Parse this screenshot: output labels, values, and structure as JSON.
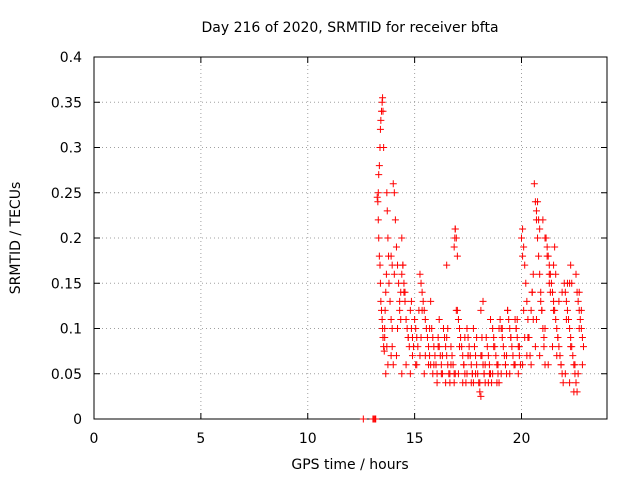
{
  "chart_data": {
    "type": "scatter",
    "title": "Day 216 of 2020, SRMTID for receiver bfta",
    "xlabel": "GPS time / hours",
    "ylabel": "SRMTID / TECUs",
    "xlim": [
      0,
      24
    ],
    "ylim": [
      0,
      0.4
    ],
    "xticks": [
      0,
      5,
      10,
      15,
      20
    ],
    "yticks": [
      0,
      0.05,
      0.1,
      0.15,
      0.2,
      0.25,
      0.3,
      0.35,
      0.4
    ],
    "xtick_labels": [
      "0",
      "5",
      "10",
      "15",
      "20"
    ],
    "ytick_labels": [
      "0",
      "0.05",
      "0.1",
      "0.15",
      "0.2",
      "0.25",
      "0.3",
      "0.35",
      "0.4"
    ],
    "grid": true,
    "marker": "plus",
    "color": "#ff0000",
    "series": [
      {
        "x": [
          12.6,
          13.05,
          13.1,
          13.15,
          13.18,
          13.25,
          13.28,
          13.3,
          13.32,
          13.35,
          13.38,
          13.4,
          13.42,
          13.45,
          13.48,
          13.5,
          13.52,
          13.55,
          13.3,
          13.32,
          13.35,
          13.38,
          13.4,
          13.42,
          13.45,
          13.48,
          13.5,
          13.52,
          13.55,
          13.58,
          13.6,
          13.62,
          13.65,
          13.68,
          13.7,
          13.72,
          13.75,
          13.78,
          13.8,
          13.85,
          13.9,
          13.95,
          14.0,
          14.05,
          14.1,
          14.15,
          14.2,
          14.25,
          14.3,
          14.35,
          14.4,
          14.45,
          14.5,
          14.55,
          14.6,
          14.65,
          14.7,
          14.75,
          14.8,
          14.85,
          14.9,
          14.95,
          15.0,
          15.05,
          15.1,
          15.15,
          15.2,
          15.25,
          15.3,
          15.35,
          15.4,
          15.45,
          15.5,
          15.55,
          15.6,
          15.65,
          15.7,
          15.75,
          15.8,
          15.85,
          15.9,
          15.95,
          16.0,
          16.05,
          16.1,
          16.15,
          16.2,
          16.25,
          16.3,
          16.35,
          16.4,
          16.45,
          16.5,
          16.55,
          16.6,
          16.65,
          16.7,
          16.75,
          16.8,
          16.85,
          16.9,
          16.95,
          17.0,
          17.05,
          17.1,
          17.15,
          17.2,
          17.25,
          17.3,
          17.35,
          17.4,
          17.45,
          17.5,
          17.55,
          17.6,
          17.65,
          17.7,
          17.75,
          17.8,
          17.85,
          17.9,
          17.95,
          18.0,
          18.05,
          18.1,
          18.15,
          18.2,
          18.25,
          18.3,
          18.35,
          18.4,
          18.45,
          18.5,
          18.55,
          18.6,
          18.65,
          18.7,
          18.75,
          18.8,
          18.85,
          18.9,
          18.95,
          19.0,
          19.05,
          19.1,
          19.15,
          19.2,
          19.25,
          19.3,
          19.35,
          19.4,
          19.45,
          19.5,
          19.55,
          19.6,
          19.65,
          19.7,
          19.75,
          19.8,
          19.85,
          19.9,
          19.95,
          20.0,
          20.05,
          20.1,
          20.15,
          20.2,
          20.25,
          20.3,
          20.35,
          20.4,
          20.45,
          20.5,
          20.55,
          20.6,
          20.65,
          20.7,
          20.75,
          20.8,
          20.85,
          20.9,
          20.95,
          21.0,
          21.05,
          21.1,
          21.15,
          21.2,
          21.25,
          21.3,
          21.35,
          21.4,
          21.45,
          21.5,
          21.55,
          21.6,
          21.65,
          21.7,
          21.75,
          21.8,
          21.85,
          21.9,
          21.95,
          22.0,
          22.05,
          22.1,
          22.15,
          22.2,
          22.25,
          22.3,
          22.35,
          22.4,
          22.45,
          22.5,
          22.55,
          22.6,
          22.65,
          22.7,
          22.75,
          22.8,
          22.85,
          22.9,
          13.6,
          13.7,
          13.9,
          14.0,
          14.2,
          14.3,
          14.5,
          14.7,
          14.9,
          15.1,
          15.3,
          15.5,
          15.7,
          15.9,
          16.1,
          16.3,
          16.5,
          16.7,
          16.9,
          17.1,
          17.3,
          17.5,
          17.7,
          17.9,
          18.1,
          18.3,
          18.5,
          18.7,
          18.9,
          19.1,
          19.3,
          19.5,
          19.7,
          19.9,
          20.1,
          20.3,
          20.5,
          20.7,
          20.9,
          21.1,
          21.3,
          21.5,
          21.7,
          21.9,
          22.1,
          22.3,
          22.5,
          22.7,
          22.8,
          13.65,
          13.75,
          13.95,
          14.15,
          14.4,
          14.6,
          14.8,
          15.05,
          15.25,
          15.45,
          15.65,
          15.85,
          16.05,
          16.25,
          16.45,
          16.65,
          16.85,
          17.05,
          17.25,
          17.45,
          17.65,
          17.85,
          18.05,
          18.25,
          18.45,
          18.65,
          18.85,
          19.05,
          19.25,
          19.45,
          19.65,
          19.85,
          20.05,
          20.25,
          20.45,
          20.65,
          20.85,
          21.05,
          21.25,
          21.45,
          21.65,
          21.85,
          22.05,
          22.25,
          22.45,
          22.65,
          22.85,
          14.05,
          14.35,
          14.85,
          15.35,
          15.75,
          16.15,
          16.55,
          16.95,
          17.35,
          17.75,
          18.15,
          18.55,
          18.95,
          19.35,
          19.75,
          20.15,
          20.55,
          20.95,
          21.35,
          21.75,
          22.15,
          22.55,
          16.85,
          16.88,
          16.9,
          17.0,
          20.0,
          20.05,
          20.7,
          20.75,
          20.8,
          20.85,
          21.0,
          21.1,
          21.2,
          21.5,
          21.55,
          21.6,
          22.3,
          22.35,
          22.6,
          14.4,
          14.45,
          14.55,
          13.9,
          13.95,
          16.5,
          17.5,
          18.1,
          18.2,
          19.8,
          21.3,
          22.25,
          22.7
        ],
        "y": [
          0.0,
          0.0,
          0.0,
          0.0,
          0.0,
          0.245,
          0.24,
          0.25,
          0.27,
          0.28,
          0.3,
          0.32,
          0.33,
          0.34,
          0.35,
          0.355,
          0.34,
          0.3,
          0.22,
          0.2,
          0.18,
          0.17,
          0.15,
          0.13,
          0.12,
          0.11,
          0.1,
          0.09,
          0.08,
          0.075,
          0.1,
          0.12,
          0.14,
          0.16,
          0.25,
          0.23,
          0.2,
          0.18,
          0.15,
          0.13,
          0.11,
          0.1,
          0.26,
          0.25,
          0.22,
          0.19,
          0.17,
          0.15,
          0.13,
          0.11,
          0.2,
          0.17,
          0.15,
          0.13,
          0.11,
          0.1,
          0.09,
          0.08,
          0.12,
          0.1,
          0.09,
          0.08,
          0.11,
          0.1,
          0.09,
          0.08,
          0.12,
          0.16,
          0.15,
          0.14,
          0.13,
          0.12,
          0.11,
          0.1,
          0.09,
          0.08,
          0.07,
          0.06,
          0.1,
          0.09,
          0.08,
          0.07,
          0.06,
          0.05,
          0.09,
          0.08,
          0.07,
          0.06,
          0.05,
          0.1,
          0.09,
          0.08,
          0.07,
          0.06,
          0.05,
          0.04,
          0.08,
          0.07,
          0.06,
          0.05,
          0.21,
          0.2,
          0.12,
          0.11,
          0.1,
          0.09,
          0.08,
          0.07,
          0.06,
          0.05,
          0.04,
          0.1,
          0.09,
          0.08,
          0.07,
          0.06,
          0.05,
          0.04,
          0.08,
          0.07,
          0.06,
          0.05,
          0.04,
          0.03,
          0.025,
          0.07,
          0.06,
          0.05,
          0.04,
          0.09,
          0.08,
          0.07,
          0.06,
          0.05,
          0.04,
          0.1,
          0.09,
          0.08,
          0.07,
          0.06,
          0.05,
          0.04,
          0.11,
          0.1,
          0.09,
          0.08,
          0.07,
          0.06,
          0.05,
          0.12,
          0.11,
          0.1,
          0.09,
          0.08,
          0.07,
          0.06,
          0.11,
          0.1,
          0.09,
          0.08,
          0.07,
          0.06,
          0.2,
          0.21,
          0.19,
          0.17,
          0.15,
          0.13,
          0.11,
          0.09,
          0.07,
          0.12,
          0.14,
          0.16,
          0.26,
          0.24,
          0.22,
          0.2,
          0.18,
          0.16,
          0.14,
          0.12,
          0.1,
          0.08,
          0.06,
          0.2,
          0.19,
          0.18,
          0.17,
          0.16,
          0.15,
          0.14,
          0.13,
          0.12,
          0.11,
          0.1,
          0.09,
          0.08,
          0.07,
          0.06,
          0.05,
          0.04,
          0.15,
          0.14,
          0.13,
          0.12,
          0.11,
          0.1,
          0.09,
          0.08,
          0.07,
          0.06,
          0.05,
          0.04,
          0.03,
          0.13,
          0.12,
          0.11,
          0.1,
          0.09,
          0.08,
          0.09,
          0.08,
          0.07,
          0.06,
          0.1,
          0.12,
          0.14,
          0.09,
          0.07,
          0.06,
          0.09,
          0.07,
          0.1,
          0.06,
          0.08,
          0.07,
          0.09,
          0.06,
          0.05,
          0.08,
          0.06,
          0.07,
          0.05,
          0.09,
          0.07,
          0.06,
          0.05,
          0.08,
          0.06,
          0.1,
          0.07,
          0.09,
          0.06,
          0.08,
          0.12,
          0.09,
          0.14,
          0.11,
          0.13,
          0.1,
          0.15,
          0.12,
          0.09,
          0.14,
          0.11,
          0.08,
          0.06,
          0.1,
          0.12,
          0.05,
          0.06,
          0.08,
          0.07,
          0.05,
          0.06,
          0.05,
          0.06,
          0.07,
          0.05,
          0.06,
          0.05,
          0.04,
          0.05,
          0.04,
          0.05,
          0.04,
          0.05,
          0.04,
          0.05,
          0.04,
          0.05,
          0.04,
          0.05,
          0.04,
          0.05,
          0.04,
          0.05,
          0.06,
          0.05,
          0.06,
          0.05,
          0.06,
          0.07,
          0.06,
          0.08,
          0.07,
          0.09,
          0.06,
          0.08,
          0.07,
          0.06,
          0.05,
          0.04,
          0.03,
          0.05,
          0.06,
          0.16,
          0.14,
          0.13,
          0.12,
          0.13,
          0.11,
          0.1,
          0.12,
          0.09,
          0.1,
          0.09,
          0.11,
          0.1,
          0.12,
          0.1,
          0.09,
          0.11,
          0.12,
          0.14,
          0.13,
          0.15,
          0.16,
          0.19,
          0.2,
          0.21,
          0.18,
          0.2,
          0.18,
          0.23,
          0.24,
          0.22,
          0.21,
          0.22,
          0.2,
          0.18,
          0.17,
          0.19,
          0.16,
          0.17,
          0.15,
          0.14,
          0.16,
          0.17,
          0.14,
          0.18,
          0.17,
          0.17,
          0.07,
          0.12,
          0.13,
          0.11,
          0.16,
          0.15,
          0.14
        ]
      }
    ]
  }
}
